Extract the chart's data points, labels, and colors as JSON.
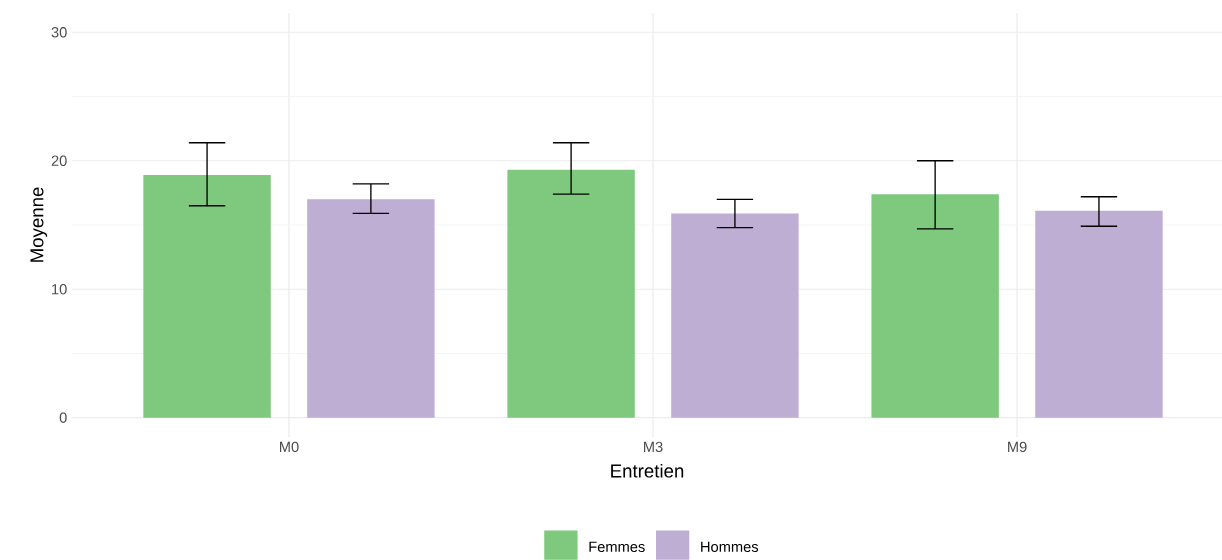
{
  "chart_data": {
    "type": "bar",
    "xlabel": "Entretien",
    "ylabel": "Moyenne",
    "categories": [
      "M0",
      "M3",
      "M9"
    ],
    "series": [
      {
        "name": "Femmes",
        "color": "#7fc97f",
        "values": [
          18.9,
          19.3,
          17.4
        ],
        "errors": [
          [
            16.5,
            21.4
          ],
          [
            17.4,
            21.4
          ],
          [
            14.7,
            20.0
          ]
        ]
      },
      {
        "name": "Hommes",
        "color": "#beaed4",
        "values": [
          17.0,
          15.9,
          16.1
        ],
        "errors": [
          [
            15.9,
            18.2
          ],
          [
            14.8,
            17.0
          ],
          [
            14.9,
            17.2
          ]
        ]
      }
    ],
    "ylim": [
      -1.5,
      31.5
    ],
    "yticks": [
      0,
      10,
      20,
      30
    ],
    "grid": true,
    "legend": "bottom"
  }
}
